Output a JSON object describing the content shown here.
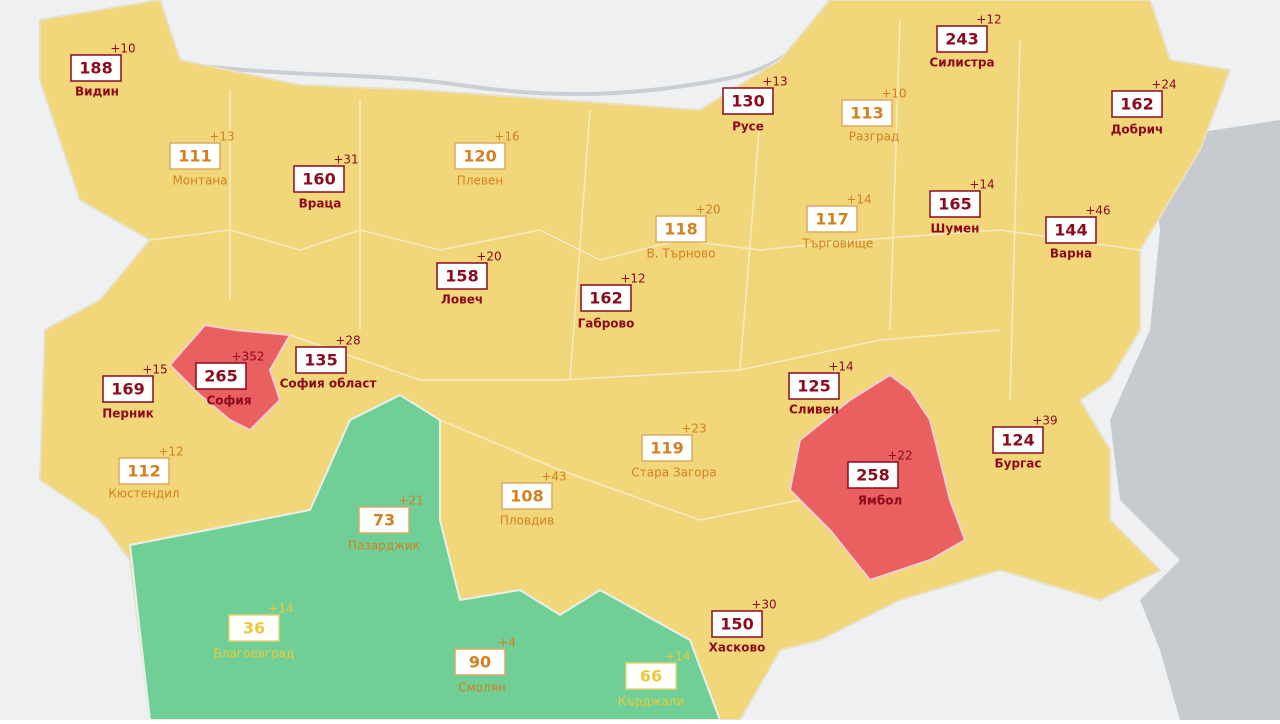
{
  "regions": [
    {
      "name": "Видин",
      "value": 188,
      "change": "+10"
    },
    {
      "name": "Монтана",
      "value": 111,
      "change": "+13"
    },
    {
      "name": "Враца",
      "value": 160,
      "change": "+31"
    },
    {
      "name": "Плевен",
      "value": 120,
      "change": "+16"
    },
    {
      "name": "Ловеч",
      "value": 158,
      "change": "+20"
    },
    {
      "name": "Габрово",
      "value": 162,
      "change": "+12"
    },
    {
      "name": "В. Търново",
      "value": 118,
      "change": "+20"
    },
    {
      "name": "Русе",
      "value": 130,
      "change": "+13"
    },
    {
      "name": "Разград",
      "value": 113,
      "change": "+10"
    },
    {
      "name": "Силистра",
      "value": 243,
      "change": "+12"
    },
    {
      "name": "Добрич",
      "value": 162,
      "change": "+24"
    },
    {
      "name": "Търговище",
      "value": 117,
      "change": "+14"
    },
    {
      "name": "Шумен",
      "value": 165,
      "change": "+14"
    },
    {
      "name": "Варна",
      "value": 144,
      "change": "+46"
    },
    {
      "name": "Перник",
      "value": 169,
      "change": "+15"
    },
    {
      "name": "София",
      "value": 265,
      "change": "+352"
    },
    {
      "name": "София област",
      "value": 135,
      "change": "+28"
    },
    {
      "name": "Кюстендил",
      "value": 112,
      "change": "+12"
    },
    {
      "name": "Сливен",
      "value": 125,
      "change": "+14"
    },
    {
      "name": "Ямбол",
      "value": 258,
      "change": "+22"
    },
    {
      "name": "Бургас",
      "value": 124,
      "change": "+39"
    },
    {
      "name": "Стара Загора",
      "value": 119,
      "change": "+23"
    },
    {
      "name": "Пловдив",
      "value": 108,
      "change": "+43"
    },
    {
      "name": "Пазарджик",
      "value": 73,
      "change": "+21"
    },
    {
      "name": "Благоевград",
      "value": 36,
      "change": "+14"
    },
    {
      "name": "Смолян",
      "value": 90,
      "change": "+4"
    },
    {
      "name": "Хасково",
      "value": 150,
      "change": "+30"
    },
    {
      "name": "Кърджали",
      "value": 66,
      "change": "+14"
    }
  ]
}
